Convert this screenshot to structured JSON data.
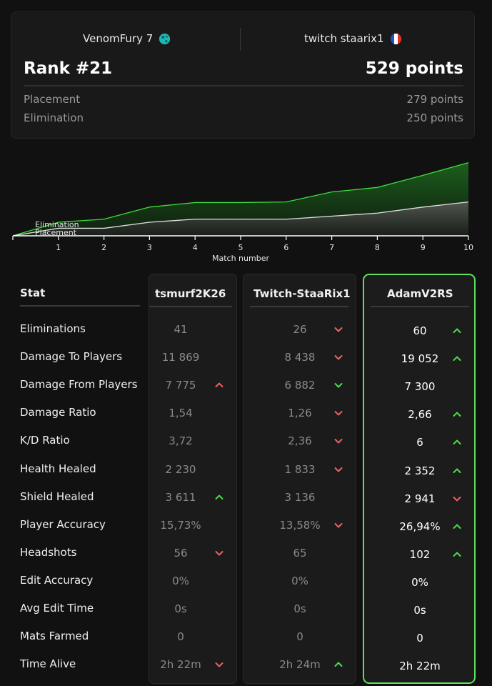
{
  "header": {
    "player1": "VenomFury 7",
    "player2": "twitch staarix1",
    "rank": "Rank #21",
    "points": "529 points",
    "placement_label": "Placement",
    "placement_value": "279 points",
    "elimination_label": "Elimination",
    "elimination_value": "250 points"
  },
  "chart_data": {
    "type": "area",
    "xlabel": "Match number",
    "x": [
      0,
      1,
      2,
      3,
      4,
      5,
      6,
      7,
      8,
      9,
      10
    ],
    "x_ticks": [
      "1",
      "2",
      "3",
      "4",
      "5",
      "6",
      "7",
      "8",
      "9",
      "10"
    ],
    "series": [
      {
        "name": "Elimination",
        "values": [
          0,
          45,
          55,
          95,
          110,
          110,
          112,
          145,
          160,
          200,
          242
        ],
        "color": "#3ddc3d"
      },
      {
        "name": "Placement",
        "values": [
          0,
          25,
          25,
          45,
          55,
          55,
          55,
          65,
          75,
          95,
          112
        ],
        "color": "#e0e0e0"
      }
    ]
  },
  "table": {
    "stat_header": "Stat",
    "columns": [
      "tsmurf2K26",
      "Twitch-StaaRix1",
      "AdamV2RS"
    ],
    "rows": [
      {
        "label": "Eliminations",
        "c1": "41",
        "a1": "",
        "c2": "26",
        "a2": "down",
        "c3": "60",
        "a3": "up"
      },
      {
        "label": "Damage To Players",
        "c1": "11 869",
        "a1": "",
        "c2": "8 438",
        "a2": "down",
        "c3": "19 052",
        "a3": "up"
      },
      {
        "label": "Damage From Players",
        "c1": "7 775",
        "a1": "up-red",
        "c2": "6 882",
        "a2": "down-green",
        "c3": "7 300",
        "a3": ""
      },
      {
        "label": "Damage Ratio",
        "c1": "1,54",
        "a1": "",
        "c2": "1,26",
        "a2": "down",
        "c3": "2,66",
        "a3": "up"
      },
      {
        "label": "K/D Ratio",
        "c1": "3,72",
        "a1": "",
        "c2": "2,36",
        "a2": "down",
        "c3": "6",
        "a3": "up"
      },
      {
        "label": "Health Healed",
        "c1": "2 230",
        "a1": "",
        "c2": "1 833",
        "a2": "down",
        "c3": "2 352",
        "a3": "up"
      },
      {
        "label": "Shield Healed",
        "c1": "3 611",
        "a1": "up",
        "c2": "3 136",
        "a2": "",
        "c3": "2 941",
        "a3": "down"
      },
      {
        "label": "Player Accuracy",
        "c1": "15,73%",
        "a1": "",
        "c2": "13,58%",
        "a2": "down",
        "c3": "26,94%",
        "a3": "up"
      },
      {
        "label": "Headshots",
        "c1": "56",
        "a1": "down",
        "c2": "65",
        "a2": "",
        "c3": "102",
        "a3": "up"
      },
      {
        "label": "Edit Accuracy",
        "c1": "0%",
        "a1": "",
        "c2": "0%",
        "a2": "",
        "c3": "0%",
        "a3": ""
      },
      {
        "label": "Avg Edit Time",
        "c1": "0s",
        "a1": "",
        "c2": "0s",
        "a2": "",
        "c3": "0s",
        "a3": ""
      },
      {
        "label": "Mats Farmed",
        "c1": "0",
        "a1": "",
        "c2": "0",
        "a2": "",
        "c3": "0",
        "a3": ""
      },
      {
        "label": "Time Alive",
        "c1": "2h 22m",
        "a1": "down",
        "c2": "2h 24m",
        "a2": "up",
        "c3": "2h 22m",
        "a3": ""
      }
    ]
  },
  "colors": {
    "up": "#4ade4a",
    "down": "#f06060",
    "highlight_border": "#5fe05f"
  }
}
